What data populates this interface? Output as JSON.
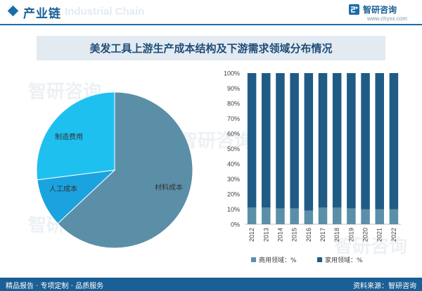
{
  "header": {
    "section_title": "产业链",
    "watermark_en": "Industrial Chain",
    "logo_name": "智研咨询",
    "logo_url": "www.chyxx.com"
  },
  "watermark_text": "智研咨询",
  "footer": {
    "left": "精品报告 · 专项定制 · 品质服务",
    "right": "资料来源：智研咨询"
  },
  "colors": {
    "brand": "#1a5f95",
    "pie_material": "#5b8fa8",
    "pie_labor": "#1aa3df",
    "pie_manufacturing": "#1ec0f0",
    "bar_commercial": "#5b8fa8",
    "bar_household": "#1f5b85"
  },
  "chart_data": [
    {
      "type": "pie",
      "title": "美发工具上游生产成本结构及下游需求领域分布情况",
      "slices": [
        {
          "label": "材料成本",
          "value": 63
        },
        {
          "label": "人工成本",
          "value": 10
        },
        {
          "label": "制造费用",
          "value": 27
        }
      ]
    },
    {
      "type": "bar",
      "stacked": true,
      "categories": [
        "2012",
        "2013",
        "2014",
        "2015",
        "2016",
        "2017",
        "2018",
        "2019",
        "2020",
        "2021",
        "2022"
      ],
      "series": [
        {
          "name": "商用领域：%",
          "values": [
            11,
            11,
            10.5,
            10.5,
            9,
            11,
            11,
            10.5,
            10,
            10,
            10
          ]
        },
        {
          "name": "家用领域：%",
          "values": [
            89,
            89,
            89.5,
            89.5,
            91,
            89,
            89,
            89.5,
            90,
            90,
            90
          ]
        }
      ],
      "ylim": [
        0,
        100
      ],
      "yticks": [
        "0%",
        "10%",
        "20%",
        "30%",
        "40%",
        "50%",
        "60%",
        "70%",
        "80%",
        "90%",
        "100%"
      ],
      "legend": "bottom"
    }
  ]
}
